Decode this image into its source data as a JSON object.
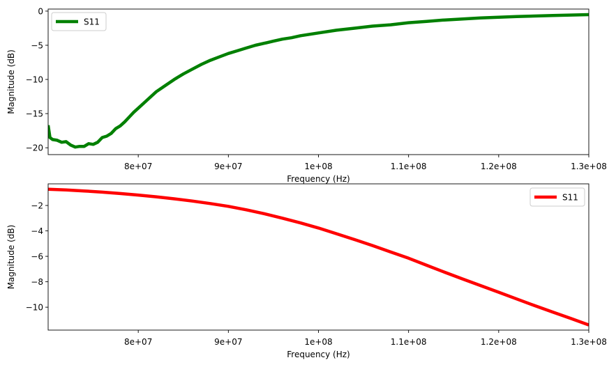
{
  "chart_data": [
    {
      "type": "line",
      "xlabel": "Frequency (Hz)",
      "ylabel": "Magnitude (dB)",
      "xlim": [
        70000000,
        130000000
      ],
      "ylim": [
        -21,
        0.3
      ],
      "x_ticks": [
        80000000,
        90000000,
        100000000,
        110000000,
        120000000,
        130000000
      ],
      "x_tick_labels": [
        "8e+07",
        "9e+07",
        "1e+08",
        "1.1e+08",
        "1.2e+08",
        "1.3e+08"
      ],
      "y_ticks": [
        0,
        -5,
        -10,
        -15,
        -20
      ],
      "y_tick_labels": [
        "0",
        "−5",
        "−10",
        "−15",
        "−20"
      ],
      "grid": false,
      "legend_position": "upper-left",
      "series": [
        {
          "name": "S11",
          "color": "#008000",
          "x": [
            70000000,
            70200000,
            70500000,
            71000000,
            71500000,
            72000000,
            72500000,
            73000000,
            73500000,
            74000000,
            74500000,
            75000000,
            75500000,
            76000000,
            76500000,
            77000000,
            77500000,
            78000000,
            78500000,
            79000000,
            79500000,
            80000000,
            81000000,
            82000000,
            83000000,
            84000000,
            85000000,
            86000000,
            87000000,
            88000000,
            89000000,
            90000000,
            91000000,
            92000000,
            93000000,
            94000000,
            95000000,
            96000000,
            97000000,
            98000000,
            99000000,
            100000000,
            102000000,
            104000000,
            106000000,
            108000000,
            110000000,
            112000000,
            114000000,
            116000000,
            118000000,
            120000000,
            122000000,
            124000000,
            126000000,
            128000000,
            130000000
          ],
          "y": [
            -16.7,
            -18.5,
            -18.8,
            -18.9,
            -19.2,
            -19.1,
            -19.6,
            -19.9,
            -19.8,
            -19.8,
            -19.4,
            -19.5,
            -19.2,
            -18.5,
            -18.3,
            -17.9,
            -17.2,
            -16.8,
            -16.2,
            -15.5,
            -14.8,
            -14.2,
            -13.0,
            -11.8,
            -10.9,
            -10.0,
            -9.2,
            -8.5,
            -7.8,
            -7.2,
            -6.7,
            -6.2,
            -5.8,
            -5.4,
            -5.0,
            -4.7,
            -4.4,
            -4.1,
            -3.9,
            -3.6,
            -3.4,
            -3.2,
            -2.8,
            -2.5,
            -2.2,
            -2.0,
            -1.7,
            -1.5,
            -1.3,
            -1.15,
            -1.0,
            -0.9,
            -0.8,
            -0.72,
            -0.65,
            -0.58,
            -0.52
          ]
        }
      ]
    },
    {
      "type": "line",
      "xlabel": "Frequency (Hz)",
      "ylabel": "Magnitude (dB)",
      "xlim": [
        70000000,
        130000000
      ],
      "ylim": [
        -11.8,
        -0.3
      ],
      "x_ticks": [
        80000000,
        90000000,
        100000000,
        110000000,
        120000000,
        130000000
      ],
      "x_tick_labels": [
        "8e+07",
        "9e+07",
        "1e+08",
        "1.1e+08",
        "1.2e+08",
        "1.3e+08"
      ],
      "y_ticks": [
        -2,
        -4,
        -6,
        -8,
        -10
      ],
      "y_tick_labels": [
        "−2",
        "−4",
        "−6",
        "−8",
        "−10"
      ],
      "grid": false,
      "legend_position": "upper-right",
      "series": [
        {
          "name": "S11",
          "color": "#ff0000",
          "x": [
            70000000,
            72000000,
            74000000,
            76000000,
            78000000,
            80000000,
            82000000,
            84000000,
            86000000,
            88000000,
            90000000,
            92000000,
            94000000,
            96000000,
            98000000,
            100000000,
            102000000,
            104000000,
            106000000,
            108000000,
            110000000,
            112000000,
            114000000,
            116000000,
            118000000,
            120000000,
            122000000,
            124000000,
            126000000,
            128000000,
            130000000
          ],
          "y": [
            -0.72,
            -0.78,
            -0.86,
            -0.95,
            -1.06,
            -1.18,
            -1.32,
            -1.48,
            -1.65,
            -1.85,
            -2.07,
            -2.34,
            -2.65,
            -3.0,
            -3.37,
            -3.77,
            -4.22,
            -4.68,
            -5.15,
            -5.65,
            -6.15,
            -6.7,
            -7.25,
            -7.78,
            -8.3,
            -8.82,
            -9.35,
            -9.88,
            -10.38,
            -10.88,
            -11.4
          ]
        }
      ]
    }
  ]
}
